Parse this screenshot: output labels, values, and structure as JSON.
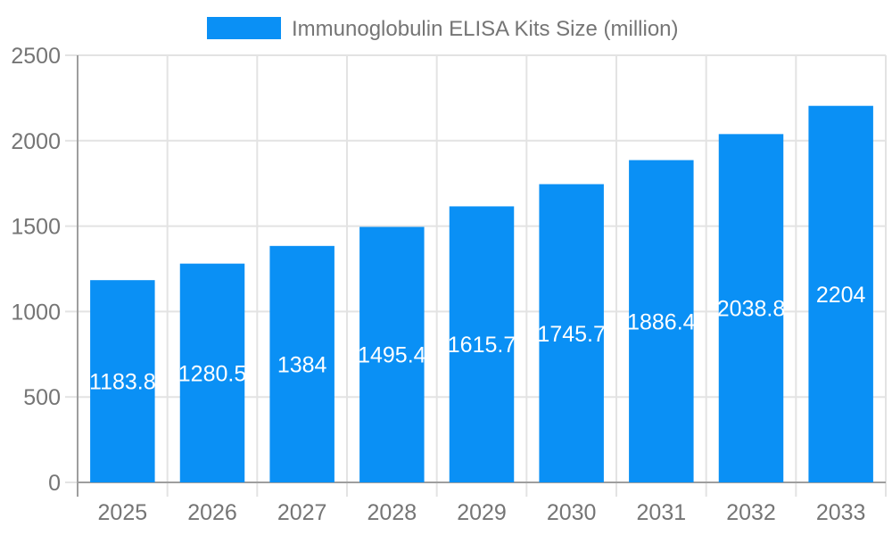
{
  "chart_data": {
    "type": "bar",
    "title": "Immunoglobulin ELISA Kits Size (million)",
    "legend_label": "Immunoglobulin ELISA Kits Size (million)",
    "legend_position": "top",
    "categories": [
      "2025",
      "2026",
      "2027",
      "2028",
      "2029",
      "2030",
      "2031",
      "2032",
      "2033"
    ],
    "values": [
      1183.8,
      1280.5,
      1384,
      1495.4,
      1615.7,
      1745.7,
      1886.4,
      2038.8,
      2204
    ],
    "value_labels": [
      "1183.8",
      "1280.5",
      "1384",
      "1495.4",
      "1615.7",
      "1745.7",
      "1886.4",
      "2038.8",
      "2204"
    ],
    "xlabel": "",
    "ylabel": "",
    "ylim": [
      0,
      2500
    ],
    "yticks": [
      0,
      500,
      1000,
      1500,
      2000,
      2500
    ],
    "ytick_labels": [
      "0",
      "500",
      "1000",
      "1500",
      "2000",
      "2500"
    ],
    "grid": true,
    "colors": {
      "bar": "#0A90F5",
      "bar_label": "#FFFFFF",
      "grid": "#E3E3E3",
      "axis": "#9E9E9E",
      "text": "#757575",
      "background": "#FFFFFF"
    }
  }
}
